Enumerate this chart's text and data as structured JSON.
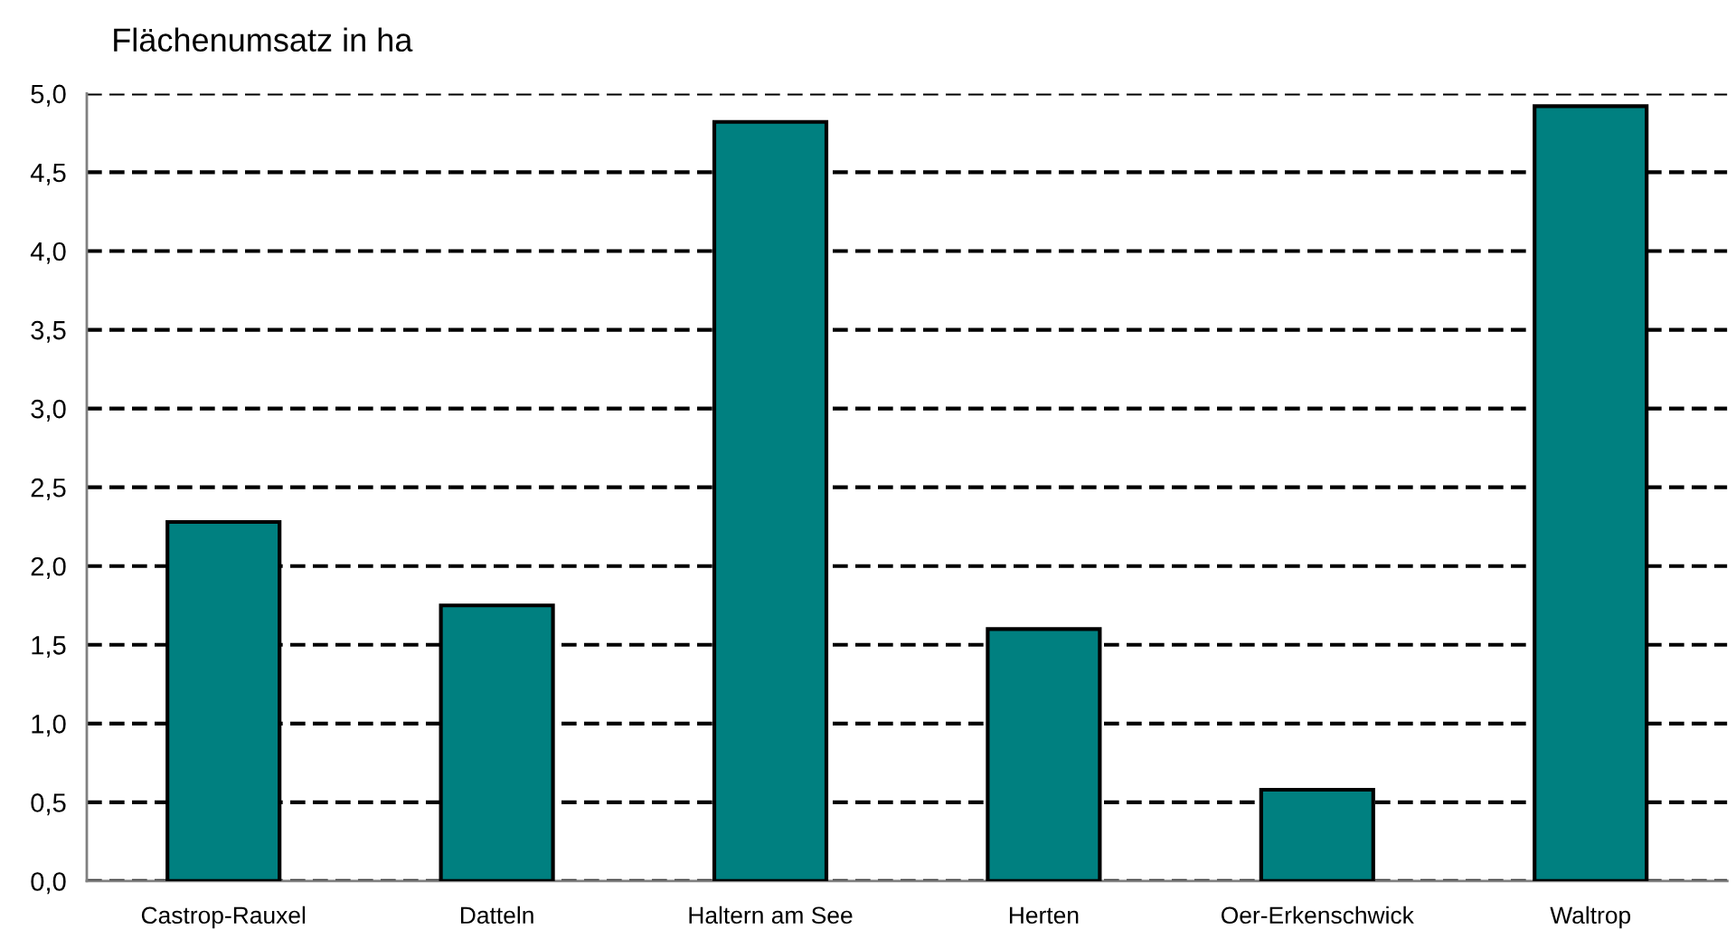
{
  "chart_data": {
    "type": "bar",
    "ylabel": "Flächenumsatz in ha",
    "categories": [
      "Castrop-Rauxel",
      "Datteln",
      "Haltern am See",
      "Herten",
      "Oer-Erkenschwick",
      "Waltrop"
    ],
    "values": [
      2.28,
      1.75,
      4.82,
      1.6,
      0.58,
      4.92
    ],
    "color": "#008080",
    "ylim": [
      0,
      5
    ],
    "yticks": [
      {
        "value": 0,
        "label": "0,0"
      },
      {
        "value": 0.5,
        "label": "0,5"
      },
      {
        "value": 1,
        "label": "1,0"
      },
      {
        "value": 1.5,
        "label": "1,5"
      },
      {
        "value": 2,
        "label": "2,0"
      },
      {
        "value": 2.5,
        "label": "2,5"
      },
      {
        "value": 3,
        "label": "3,0"
      },
      {
        "value": 3.5,
        "label": "3,5"
      },
      {
        "value": 4,
        "label": "4,0"
      },
      {
        "value": 4.5,
        "label": "4,5"
      },
      {
        "value": 5,
        "label": "5,0"
      }
    ],
    "grid": "y",
    "legend": false
  }
}
